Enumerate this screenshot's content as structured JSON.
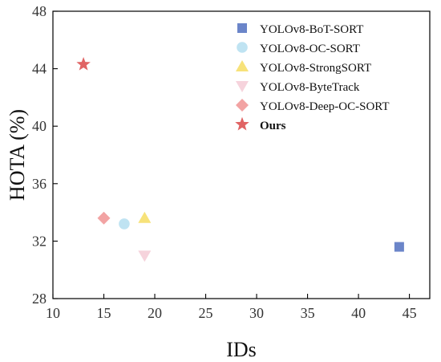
{
  "chart_data": {
    "type": "scatter",
    "title": "",
    "xlabel": "IDs",
    "ylabel": "HOTA (%)",
    "xlim": [
      10,
      47
    ],
    "ylim": [
      28,
      48
    ],
    "xticks": [
      10,
      15,
      20,
      25,
      30,
      35,
      40,
      45
    ],
    "yticks": [
      28,
      32,
      36,
      40,
      44,
      48
    ],
    "grid": false,
    "legend_position": "top-right",
    "series": [
      {
        "name": "YOLOv8-BoT-SORT",
        "marker": "square",
        "color": "#6b85c9",
        "x": [
          44
        ],
        "y": [
          31.6
        ]
      },
      {
        "name": "YOLOv8-OC-SORT",
        "marker": "circle",
        "color": "#bfe3f2",
        "x": [
          17
        ],
        "y": [
          33.2
        ]
      },
      {
        "name": "YOLOv8-StrongSORT",
        "marker": "triangle-up",
        "color": "#f7e27a",
        "x": [
          19
        ],
        "y": [
          33.6
        ]
      },
      {
        "name": "YOLOv8-ByteTrack",
        "marker": "triangle-down",
        "color": "#f6d3dc",
        "x": [
          19
        ],
        "y": [
          31.0
        ]
      },
      {
        "name": "YOLOv8-Deep-OC-SORT",
        "marker": "diamond",
        "color": "#f2a3a3",
        "x": [
          15
        ],
        "y": [
          33.6
        ]
      },
      {
        "name": "Ours",
        "marker": "star",
        "color": "#e06464",
        "x": [
          13
        ],
        "y": [
          44.3
        ],
        "bold": true
      }
    ]
  }
}
